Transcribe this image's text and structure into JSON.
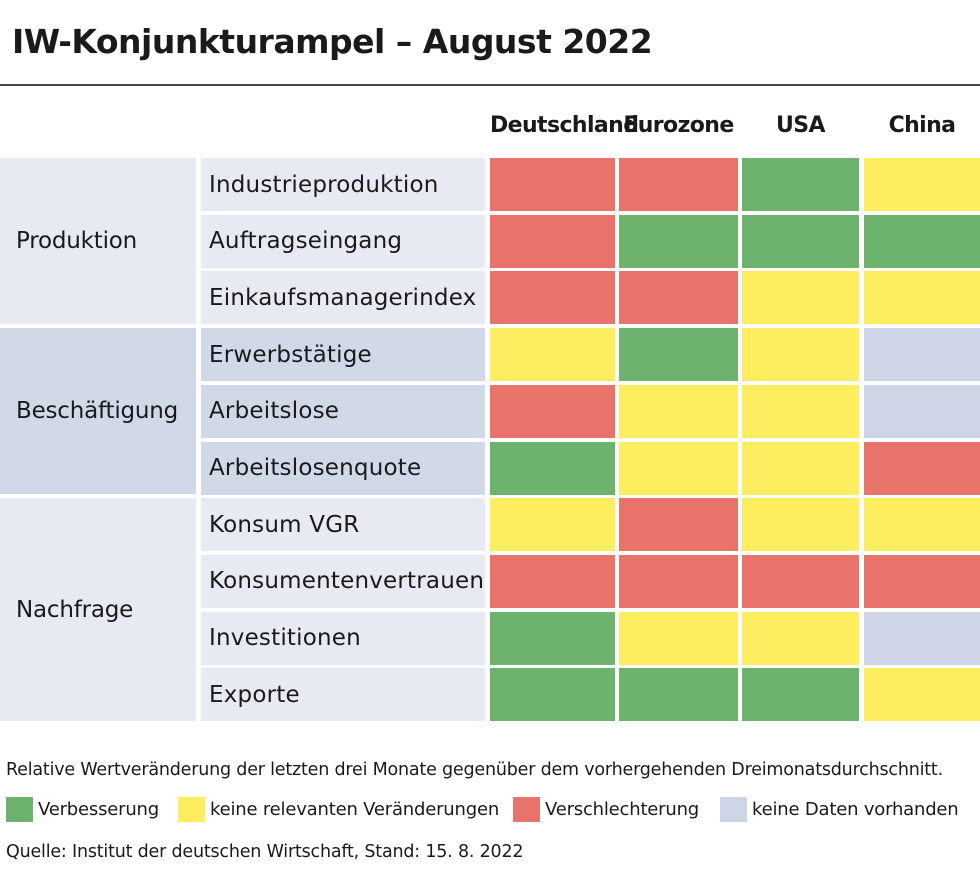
{
  "title": "IW-Konjunkturampel – August 2022",
  "colors": {
    "improvement": "#6db36d",
    "no_change": "#fdee5f",
    "deterioration": "#e8736a",
    "no_data": "#cdd5e6",
    "group_light": "#e7eaf3",
    "group_dark": "#d1d9e9"
  },
  "chart_data": {
    "type": "table",
    "title": "IW-Konjunkturampel – August 2022",
    "columns": [
      "Deutschland",
      "Eurozone",
      "USA",
      "China"
    ],
    "groups": [
      {
        "label": "Produktion",
        "rows": [
          {
            "label": "Industrieproduktion",
            "values": [
              "deterioration",
              "deterioration",
              "improvement",
              "no_change"
            ]
          },
          {
            "label": "Auftragseingang",
            "values": [
              "deterioration",
              "improvement",
              "improvement",
              "improvement"
            ]
          },
          {
            "label": "Einkaufsmanagerindex",
            "values": [
              "deterioration",
              "deterioration",
              "no_change",
              "no_change"
            ]
          }
        ]
      },
      {
        "label": "Beschäftigung",
        "rows": [
          {
            "label": "Erwerbstätige",
            "values": [
              "no_change",
              "improvement",
              "no_change",
              "no_data"
            ]
          },
          {
            "label": "Arbeitslose",
            "values": [
              "deterioration",
              "no_change",
              "no_change",
              "no_data"
            ]
          },
          {
            "label": "Arbeitslosenquote",
            "values": [
              "improvement",
              "no_change",
              "no_change",
              "deterioration"
            ]
          }
        ]
      },
      {
        "label": "Nachfrage",
        "rows": [
          {
            "label": "Konsum VGR",
            "values": [
              "no_change",
              "deterioration",
              "no_change",
              "no_change"
            ]
          },
          {
            "label": "Konsumentenvertrauen",
            "values": [
              "deterioration",
              "deterioration",
              "deterioration",
              "deterioration"
            ]
          },
          {
            "label": "Investitionen",
            "values": [
              "improvement",
              "no_change",
              "no_change",
              "no_data"
            ]
          },
          {
            "label": "Exporte",
            "values": [
              "improvement",
              "improvement",
              "improvement",
              "no_change"
            ]
          }
        ]
      }
    ]
  },
  "legend": {
    "note": "Relative Wertveränderung der letzten drei Monate gegenüber dem vorhergehenden Dreimonatsdurchschnitt.",
    "items": [
      {
        "key": "improvement",
        "label": "Verbesserung"
      },
      {
        "key": "no_change",
        "label": "keine relevanten Veränderungen"
      },
      {
        "key": "deterioration",
        "label": "Verschlechterung"
      },
      {
        "key": "no_data",
        "label": "keine Daten vorhanden"
      }
    ]
  },
  "source": "Quelle: Institut der deutschen Wirtschaft, Stand: 15. 8. 2022"
}
